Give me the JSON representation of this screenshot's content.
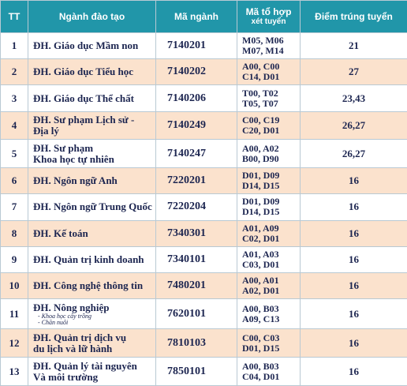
{
  "table": {
    "header": [
      "TT",
      "Ngành đào tạo",
      "Mã ngành",
      [
        "Mã tổ hợp",
        "xét tuyển"
      ],
      "Điểm trúng tuyển"
    ],
    "rows": [
      {
        "tt": "1",
        "name": [
          "ĐH. Giáo dục Mầm non"
        ],
        "code": "7140201",
        "combos": [
          "M05, M06",
          "M07, M14"
        ],
        "score": "21"
      },
      {
        "tt": "2",
        "name": [
          "ĐH. Giáo dục Tiểu học"
        ],
        "code": "7140202",
        "combos": [
          "A00, C00",
          "C14, D01"
        ],
        "score": "27"
      },
      {
        "tt": "3",
        "name": [
          "ĐH. Giáo dục Thể chất"
        ],
        "code": "7140206",
        "combos": [
          "T00, T02",
          "T05, T07"
        ],
        "score": "23,43"
      },
      {
        "tt": "4",
        "name": [
          "ĐH. Sư phạm Lịch sử - Địa lý"
        ],
        "code": "7140249",
        "combos": [
          "C00, C19",
          "C20, D01"
        ],
        "score": "26,27"
      },
      {
        "tt": "5",
        "name": [
          "ĐH. Sư phạm",
          "Khoa học tự nhiên"
        ],
        "code": "7140247",
        "combos": [
          "A00, A02",
          "B00, D90"
        ],
        "score": "26,27"
      },
      {
        "tt": "6",
        "name": [
          "ĐH. Ngôn ngữ Anh"
        ],
        "code": "7220201",
        "combos": [
          "D01, D09",
          "D14, D15"
        ],
        "score": "16"
      },
      {
        "tt": "7",
        "name": [
          "ĐH. Ngôn ngữ Trung Quốc"
        ],
        "code": "7220204",
        "combos": [
          "D01, D09",
          "D14, D15"
        ],
        "score": "16"
      },
      {
        "tt": "8",
        "name": [
          "ĐH. Kế toán"
        ],
        "code": "7340301",
        "combos": [
          "A01, A09",
          "C02, D01"
        ],
        "score": "16"
      },
      {
        "tt": "9",
        "name": [
          "ĐH. Quản trị kinh doanh"
        ],
        "code": "7340101",
        "combos": [
          "A01, A03",
          "C03, D01"
        ],
        "score": "16"
      },
      {
        "tt": "10",
        "name": [
          "ĐH. Công nghệ thông tin"
        ],
        "code": "7480201",
        "combos": [
          "A00, A01",
          "A02, D01"
        ],
        "score": "16"
      },
      {
        "tt": "11",
        "name": [
          "ĐH. Nông nghiệp"
        ],
        "sub": [
          "- Khoa học cây trồng",
          "- Chăn nuôi"
        ],
        "code": "7620101",
        "combos": [
          "A00, B03",
          "A09, C13"
        ],
        "score": "16"
      },
      {
        "tt": "12",
        "name": [
          "ĐH. Quản trị dịch vụ",
          "du lịch và lữ hành"
        ],
        "code": "7810103",
        "combos": [
          "C00, C03",
          "D01, D15"
        ],
        "score": "16"
      },
      {
        "tt": "13",
        "name": [
          "ĐH. Quản lý tài nguyên",
          "Và môi trường"
        ],
        "code": "7850101",
        "combos": [
          "A00, B03",
          "C04, D01"
        ],
        "score": "16"
      }
    ]
  }
}
